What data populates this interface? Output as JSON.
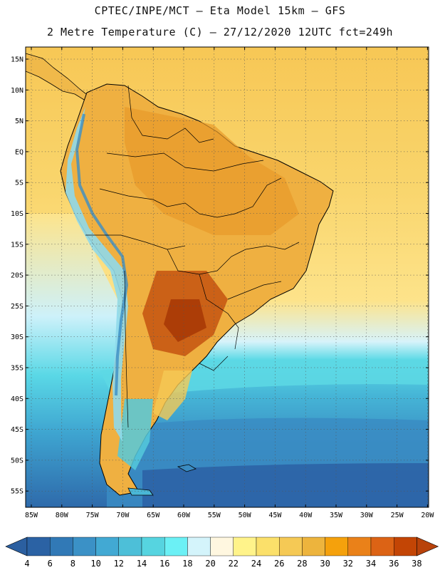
{
  "header": {
    "line1": "CPTEC/INPE/MCT –  Eta Model 15km – GFS",
    "line2": "2 Metre Temperature (C) – 27/12/2020 12UTC fct=249h"
  },
  "map": {
    "lat_labels": [
      "15N",
      "10N",
      "5N",
      "EQ",
      "5S",
      "10S",
      "15S",
      "20S",
      "25S",
      "30S",
      "35S",
      "40S",
      "45S",
      "50S",
      "55S"
    ],
    "lon_labels": [
      "85W",
      "80W",
      "75W",
      "70W",
      "65W",
      "60W",
      "55W",
      "50W",
      "45W",
      "40W",
      "35W",
      "30W",
      "25W",
      "20W"
    ]
  },
  "colorbar": {
    "labels": [
      "4",
      "6",
      "8",
      "10",
      "12",
      "14",
      "16",
      "18",
      "20",
      "22",
      "24",
      "26",
      "28",
      "30",
      "32",
      "34",
      "36",
      "38"
    ],
    "colors": [
      "#2b62a4",
      "#3179b6",
      "#3b91c6",
      "#42a9d3",
      "#4dbfd8",
      "#56d4e0",
      "#6bf0f5",
      "#d4f4fb",
      "#fff7e0",
      "#fff38a",
      "#fbe06a",
      "#f5c955",
      "#edb43d",
      "#f5a10c",
      "#ea8119",
      "#dc6315",
      "#c34505"
    ],
    "end_left": "#2b5fa0",
    "end_right": "#b8420a"
  }
}
